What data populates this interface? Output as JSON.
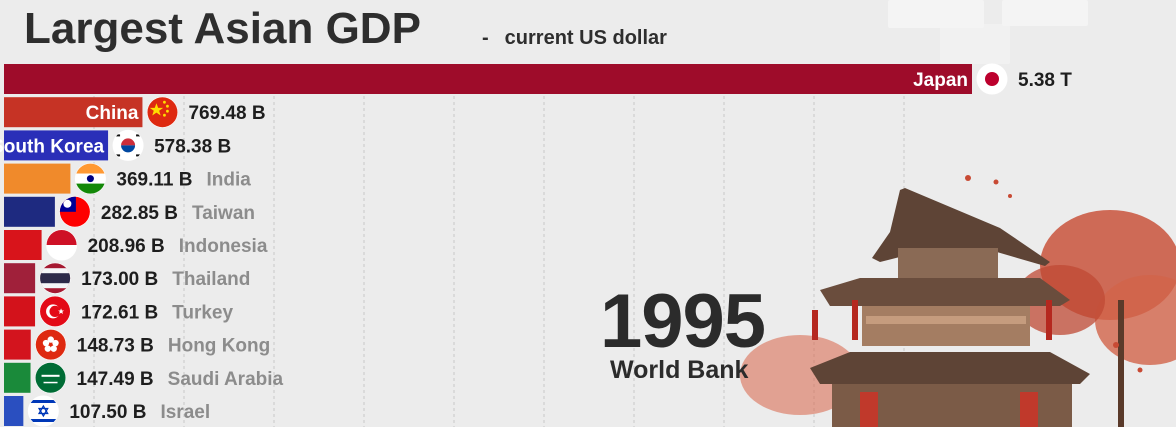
{
  "header": {
    "title": "Largest Asian GDP",
    "subtitle_dash": "-",
    "subtitle": "current US dollar"
  },
  "year": "1995",
  "source": "World Bank",
  "chart_data": {
    "type": "bar",
    "orientation": "horizontal",
    "title": "Largest Asian GDP",
    "subtitle": "current US dollar",
    "unit": "US dollar",
    "series": [
      {
        "category": "Japan",
        "value": 5380,
        "label": "5.38 T",
        "color": "#9e0c2a",
        "flag": "japan-flag",
        "name_inside": true
      },
      {
        "category": "China",
        "value": 769.48,
        "label": "769.48 B",
        "color": "#c63325",
        "flag": "china-flag",
        "name_inside": true
      },
      {
        "category": "South Korea",
        "value": 578.38,
        "label": "578.38 B",
        "color": "#2a2fb8",
        "flag": "south-korea-flag",
        "name_inside": true
      },
      {
        "category": "India",
        "value": 369.11,
        "label": "369.11 B",
        "color": "#f08a2b",
        "flag": "india-flag",
        "name_inside": false
      },
      {
        "category": "Taiwan",
        "value": 282.85,
        "label": "282.85 B",
        "color": "#1e2a80",
        "flag": "taiwan-flag",
        "name_inside": false
      },
      {
        "category": "Indonesia",
        "value": 208.96,
        "label": "208.96 B",
        "color": "#d8141b",
        "flag": "indonesia-flag",
        "name_inside": false
      },
      {
        "category": "Thailand",
        "value": 173.0,
        "label": "173.00 B",
        "color": "#a0203a",
        "flag": "thailand-flag",
        "name_inside": false
      },
      {
        "category": "Turkey",
        "value": 172.61,
        "label": "172.61 B",
        "color": "#d3121b",
        "flag": "turkey-flag",
        "name_inside": false
      },
      {
        "category": "Hong Kong",
        "value": 148.73,
        "label": "148.73 B",
        "color": "#d3141e",
        "flag": "hong-kong-flag",
        "name_inside": false
      },
      {
        "category": "Saudi Arabia",
        "value": 147.49,
        "label": "147.49 B",
        "color": "#1a8a3a",
        "flag": "saudi-arabia-flag",
        "name_inside": false
      },
      {
        "category": "Israel",
        "value": 107.5,
        "label": "107.50 B",
        "color": "#2a4fc0",
        "flag": "israel-flag",
        "name_inside": false
      }
    ],
    "grid": true
  }
}
